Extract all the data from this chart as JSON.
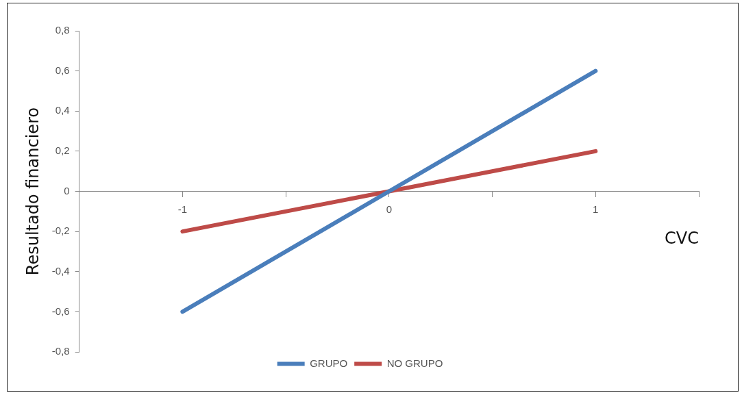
{
  "chart_data": {
    "type": "line",
    "xlabel": "CVC",
    "ylabel": "Resultado financiero",
    "x": [
      -1,
      0,
      1
    ],
    "series": [
      {
        "name": "GRUPO",
        "color": "#4a7ebb",
        "values": [
          -0.6,
          0,
          0.6
        ]
      },
      {
        "name": "NO GRUPO",
        "color": "#be4b48",
        "values": [
          -0.2,
          0,
          0.2
        ]
      }
    ],
    "xlim": [
      -1.5,
      1.5
    ],
    "xticks": [
      {
        "value": -1.5,
        "label": null
      },
      -1,
      {
        "value": -0.5,
        "label": null
      },
      0,
      {
        "value": 0.5,
        "label": null
      },
      1,
      {
        "value": 1.5,
        "label": null
      }
    ],
    "ylim": [
      -0.8,
      0.8
    ],
    "yticks": [
      {
        "value": -0.8,
        "label": "-0,8"
      },
      {
        "value": -0.6,
        "label": "-0,6"
      },
      {
        "value": -0.4,
        "label": "-0,4"
      },
      {
        "value": -0.2,
        "label": "-0,2"
      },
      0,
      {
        "value": 0.2,
        "label": "0,2"
      },
      {
        "value": 0.4,
        "label": "0,4"
      },
      {
        "value": 0.6,
        "label": "0,6"
      },
      {
        "value": 0.8,
        "label": "0,8"
      }
    ],
    "grid": false,
    "legend": "bottom",
    "marker": "none",
    "line_style": "solid"
  }
}
